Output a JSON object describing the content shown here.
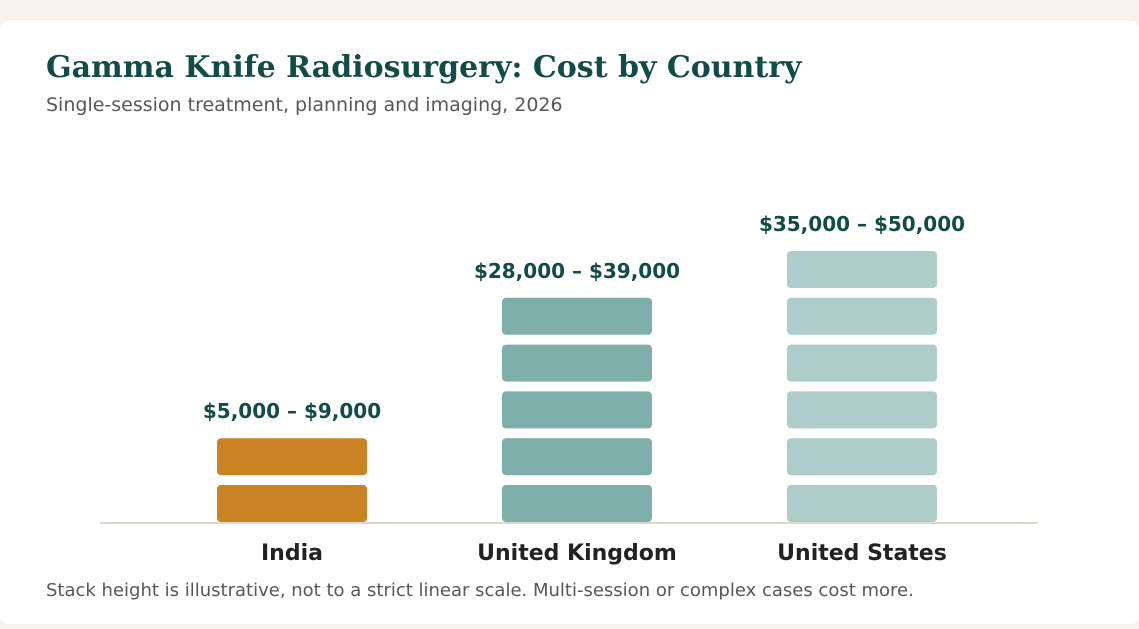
{
  "title": "Gamma Knife Radiosurgery: Cost by Country",
  "subtitle": "Single-session treatment, planning and imaging, 2026",
  "footnote": "Stack height is illustrative, not to a strict linear scale. Multi-session or complex cases cost more.",
  "chart_data": {
    "type": "bar",
    "categories": [
      "India",
      "United Kingdom",
      "United States"
    ],
    "series": [
      {
        "values": [
          2,
          5,
          6
        ]
      }
    ],
    "ranges": [
      {
        "low": 5000,
        "high": 9000
      },
      {
        "low": 28000,
        "high": 39000
      },
      {
        "low": 35000,
        "high": 50000
      }
    ],
    "data_labels": [
      "$5,000 – $9,000",
      "$28,000 – $39,000",
      "$35,000 – $50,000"
    ],
    "colors": [
      "#c98322",
      "#7fafaa",
      "#aecdca"
    ],
    "baseline_color": "#ddd8c8",
    "xlabel": "",
    "ylabel": "",
    "grid": false,
    "legend": "none"
  }
}
